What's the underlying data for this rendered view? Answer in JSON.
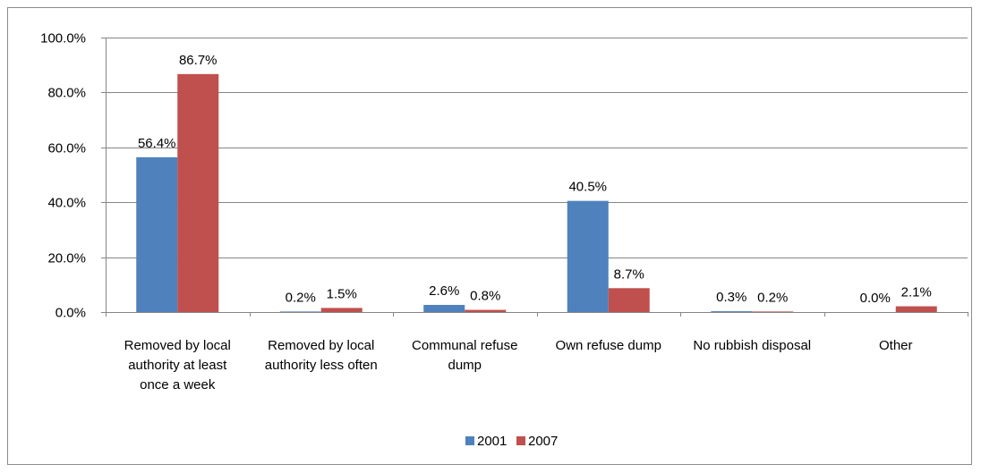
{
  "chart_data": {
    "type": "bar",
    "title": "",
    "xlabel": "",
    "ylabel": "",
    "ylim": [
      0,
      100
    ],
    "yticks": [
      0,
      20,
      40,
      60,
      80,
      100
    ],
    "ytick_labels": [
      "0.0%",
      "20.0%",
      "40.0%",
      "60.0%",
      "80.0%",
      "100.0%"
    ],
    "grid": true,
    "legend_position": "bottom",
    "categories": [
      [
        "Removed by local",
        "authority at least",
        "once a week"
      ],
      [
        "Removed by local",
        "authority less often"
      ],
      [
        "Communal refuse",
        "dump"
      ],
      [
        "Own refuse dump"
      ],
      [
        "No rubbish disposal"
      ],
      [
        "Other"
      ]
    ],
    "series": [
      {
        "name": "2001",
        "color": "#4f81bd",
        "values": [
          56.4,
          0.2,
          2.6,
          40.5,
          0.3,
          0.0
        ],
        "labels": [
          "56.4%",
          "0.2%",
          "2.6%",
          "40.5%",
          "0.3%",
          "0.0%"
        ]
      },
      {
        "name": "2007",
        "color": "#c0504d",
        "values": [
          86.7,
          1.5,
          0.8,
          8.7,
          0.2,
          2.1
        ],
        "labels": [
          "86.7%",
          "1.5%",
          "0.8%",
          "8.7%",
          "0.2%",
          "2.1%"
        ]
      }
    ]
  }
}
